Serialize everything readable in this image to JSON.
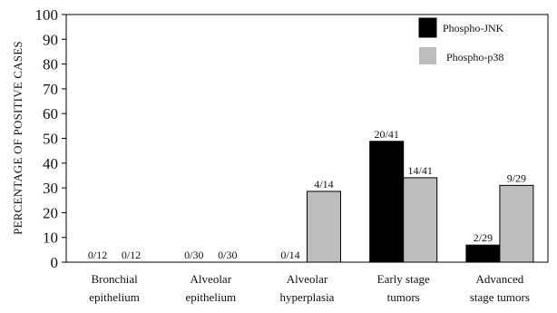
{
  "chart_data": {
    "type": "bar",
    "title": "",
    "xlabel": "",
    "ylabel": "PERCENTAGE OF POSITIVE CASES",
    "ylim": [
      0,
      100
    ],
    "yticks": [
      0,
      10,
      20,
      30,
      40,
      50,
      60,
      70,
      80,
      90,
      100
    ],
    "grid": false,
    "legend_position": "top-right",
    "categories": [
      [
        "Bronchial",
        "epithelium"
      ],
      [
        "Alveolar",
        "epithelium"
      ],
      [
        "Alveolar",
        "hyperplasia"
      ],
      [
        "Early stage",
        "tumors"
      ],
      [
        "Advanced",
        "stage tumors"
      ]
    ],
    "series": [
      {
        "name": "Phospho-JNK",
        "color": "#000000",
        "values": [
          0,
          0,
          0,
          48.8,
          6.9
        ],
        "labels": [
          "0/12",
          "0/30",
          "0/14",
          "20/41",
          "2/29"
        ]
      },
      {
        "name": "Phospho-p38",
        "color": "#bdbdbd",
        "values": [
          0,
          0,
          28.6,
          34.1,
          31.0
        ],
        "labels": [
          "0/12",
          "0/30",
          "4/14",
          "14/41",
          "9/29"
        ]
      }
    ]
  }
}
